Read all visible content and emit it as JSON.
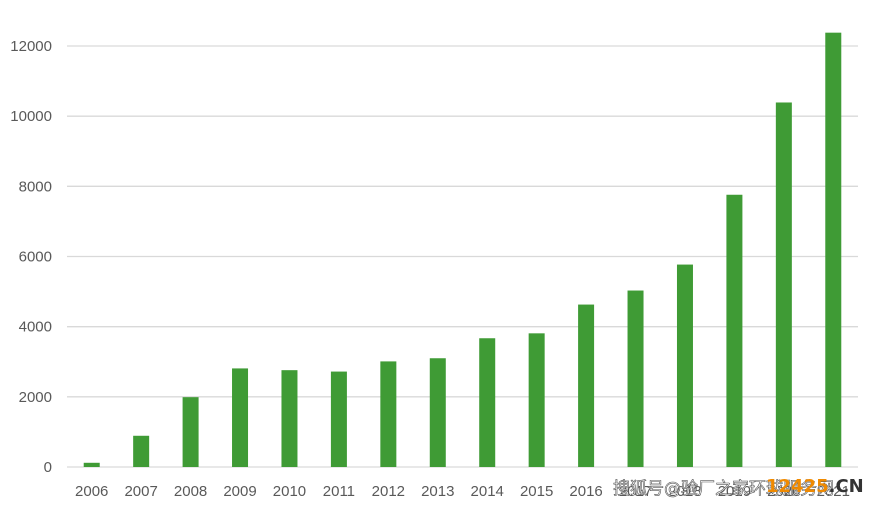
{
  "chart_data": {
    "type": "bar",
    "categories": [
      "2006",
      "2007",
      "2008",
      "2009",
      "2010",
      "2011",
      "2012",
      "2013",
      "2014",
      "2015",
      "2016",
      "2017",
      "2018",
      "2019",
      "2020",
      "2021"
    ],
    "values": [
      120,
      890,
      1990,
      2810,
      2760,
      2720,
      3010,
      3100,
      3670,
      3810,
      4630,
      5030,
      5770,
      7760,
      10390,
      12380
    ],
    "ylim": [
      0,
      12000
    ],
    "yticks": [
      0,
      2000,
      4000,
      6000,
      8000,
      10000,
      12000
    ],
    "grid": true,
    "legend": "none",
    "colors": {
      "bar": "#3f9b35",
      "grid": "#d9d9d9",
      "tick": "#595959"
    }
  },
  "watermark": {
    "text": "搜狐号@验厂之家环球服务网",
    "logo_number": "12425",
    "logo_suffix": ".CN",
    "logo_number_color": "#f08a00",
    "logo_suffix_color": "#333333"
  }
}
